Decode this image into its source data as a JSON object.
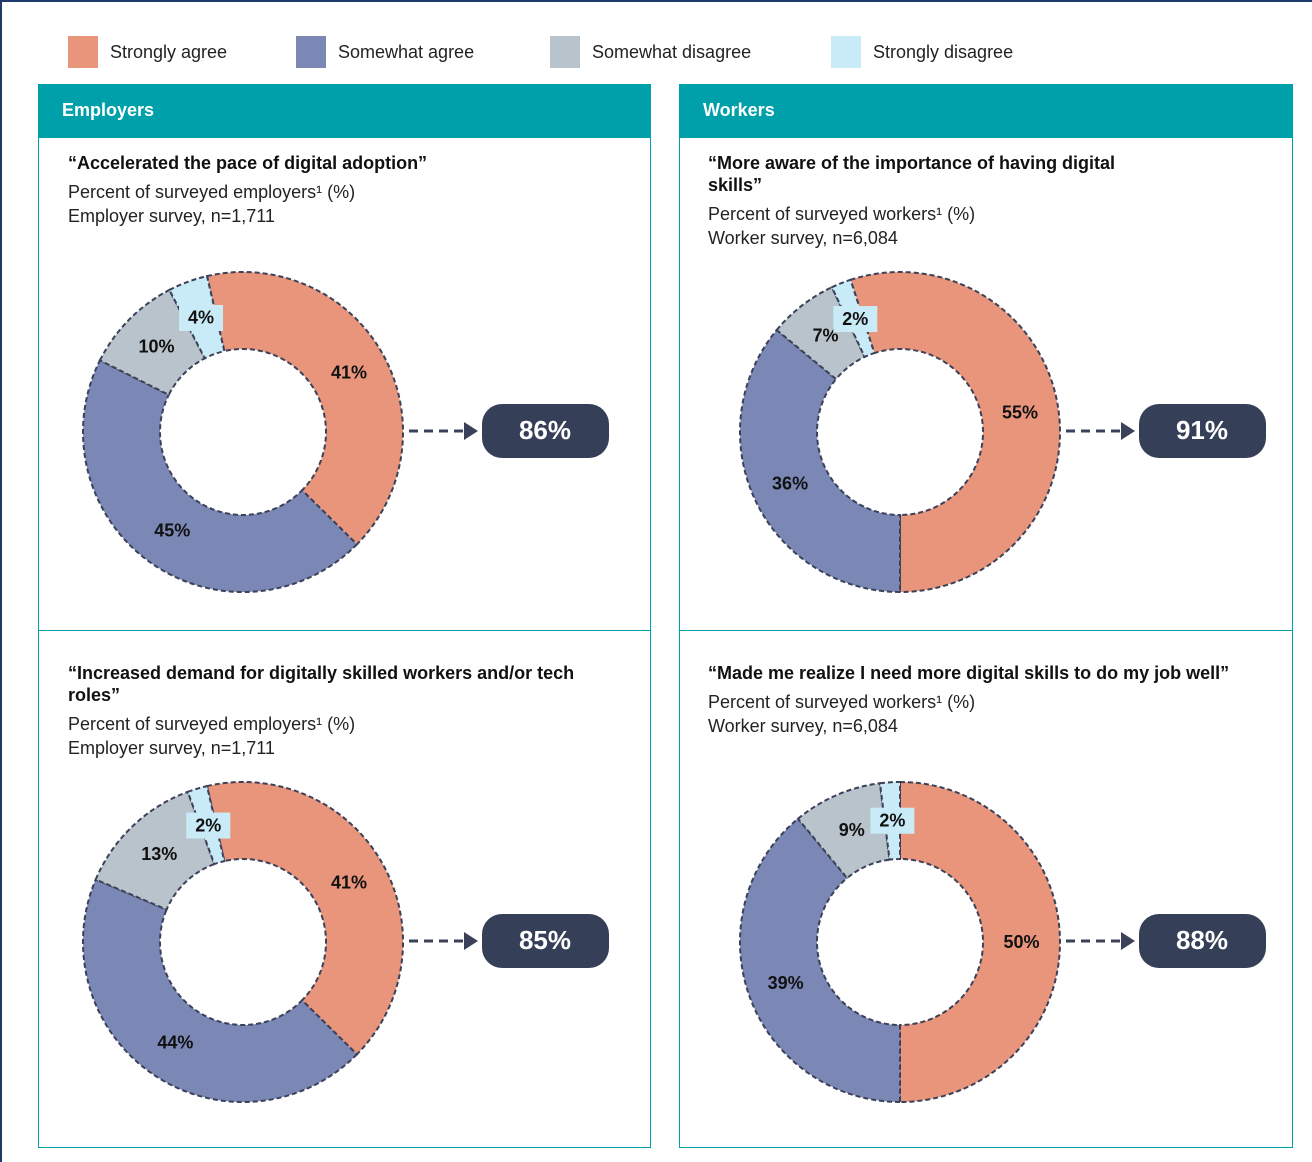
{
  "legend": {
    "categories": [
      "Strongly agree",
      "Somewhat agree",
      "Somewhat disagree",
      "Strongly disagree"
    ],
    "colors": [
      "#e8957b",
      "#7b88b6",
      "#b9c3cb",
      "#c9ebf8"
    ]
  },
  "panels": [
    {
      "header": "Employers"
    },
    {
      "header": "Workers"
    }
  ],
  "chart_data": [
    {
      "type": "donut",
      "title": "“Accelerated the pace of digital adoption”",
      "subtitle": [
        "Percent of surveyed employers¹ (%)",
        "Employer survey, n=1,711"
      ],
      "values": [
        41,
        45,
        10,
        4
      ],
      "value_labels": [
        "41%",
        "45%",
        "10%",
        "4%"
      ],
      "total": 86,
      "total_label": "86%"
    },
    {
      "type": "donut",
      "title": "“More aware of the importance of having digital skills”",
      "subtitle": [
        "Percent of surveyed workers¹ (%)",
        "Worker survey, n=6,084"
      ],
      "values": [
        55,
        36,
        7,
        2
      ],
      "value_labels": [
        "55%",
        "36%",
        "7%",
        "2%"
      ],
      "total": 91,
      "total_label": "91%"
    },
    {
      "type": "donut",
      "title": "“Increased demand for digitally skilled workers and/or tech roles”",
      "subtitle": [
        "Percent of surveyed employers¹ (%)",
        "Employer survey, n=1,711"
      ],
      "values": [
        41,
        44,
        13,
        2
      ],
      "value_labels": [
        "41%",
        "44%",
        "13%",
        "2%"
      ],
      "total": 85,
      "total_label": "85%"
    },
    {
      "type": "donut",
      "title": "“Made me realize I need more digital skills to do my job well”",
      "subtitle": [
        "Percent of surveyed workers¹ (%)",
        "Worker survey, n=6,084"
      ],
      "values": [
        50,
        39,
        9,
        2
      ],
      "value_labels": [
        "50%",
        "39%",
        "9%",
        "2%"
      ],
      "total": 88,
      "total_label": "88%"
    }
  ]
}
